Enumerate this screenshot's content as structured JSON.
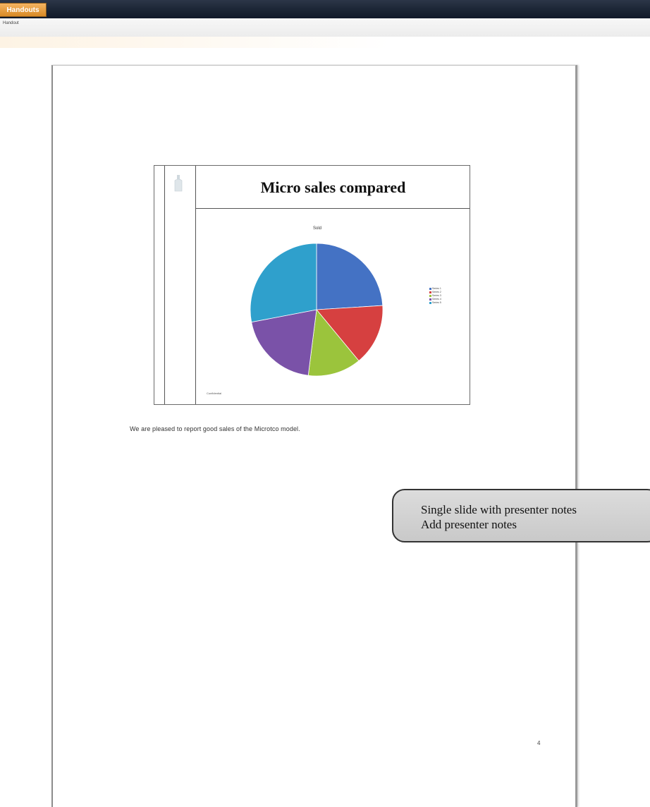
{
  "window": {
    "app_tab_label": "Handouts",
    "ribbon_label": "Handout"
  },
  "slide": {
    "title": "Micro sales compared",
    "chart_title": "Sold",
    "source_note": "Confidential"
  },
  "chart_data": {
    "type": "pie",
    "title": "Sold",
    "labels": [
      "Series 1",
      "Series 2",
      "Series 3",
      "Series 4",
      "Series 5"
    ],
    "values": [
      24,
      15,
      13,
      20,
      28
    ],
    "colors": [
      "#4472c4",
      "#d64040",
      "#9bc43c",
      "#7a52a8",
      "#2fa0cc"
    ]
  },
  "notes": {
    "text": "We are pleased to report good sales of the Microtco model."
  },
  "page_number": "4",
  "callout": {
    "line1": "Single slide with presenter notes",
    "line2": "Add presenter notes"
  }
}
